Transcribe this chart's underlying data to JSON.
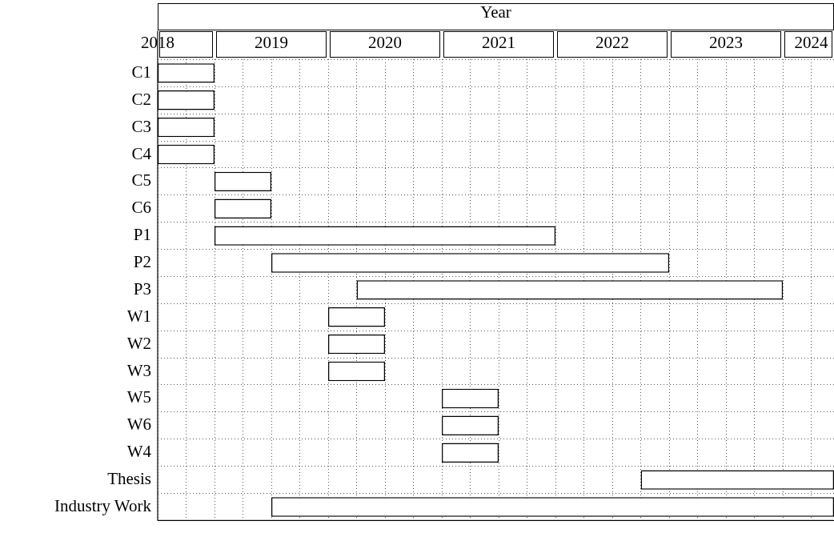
{
  "chart_data": {
    "type": "bar",
    "orientation": "horizontal",
    "xlabel": "Year",
    "categories": [
      "C1",
      "C2",
      "C3",
      "C4",
      "C5",
      "C6",
      "P1",
      "P2",
      "P3",
      "W1",
      "W2",
      "W3",
      "W5",
      "W6",
      "W4",
      "Thesis",
      "Industry Work"
    ],
    "base": [
      2018.5,
      2018.5,
      2018.5,
      2018.5,
      2019,
      2019,
      2019,
      2019.5,
      2020.25,
      2020,
      2020,
      2020,
      2021,
      2021,
      2021,
      2022.75,
      2019.5
    ],
    "values": [
      0.5,
      0.5,
      0.5,
      0.5,
      0.5,
      0.5,
      3,
      3.5,
      3.75,
      0.5,
      0.5,
      0.5,
      0.5,
      0.5,
      0.5,
      1.7,
      4.95
    ],
    "color": "#ffffff",
    "xlim": [
      2018.5,
      2024.45
    ],
    "xticks": [
      {
        "value": 2018.5,
        "label": "2018"
      },
      {
        "value": 2018.75,
        "label": null
      },
      {
        "value": 2019,
        "label": null
      },
      {
        "value": 2019.25,
        "label": null
      },
      {
        "value": 2019.5,
        "label": "2019"
      },
      {
        "value": 2019.75,
        "label": null
      },
      {
        "value": 2020,
        "label": null
      },
      {
        "value": 2020.25,
        "label": null
      },
      {
        "value": 2020.5,
        "label": "2020"
      },
      {
        "value": 2020.75,
        "label": null
      },
      {
        "value": 2021,
        "label": null
      },
      {
        "value": 2021.25,
        "label": null
      },
      {
        "value": 2021.5,
        "label": "2021"
      },
      {
        "value": 2021.75,
        "label": null
      },
      {
        "value": 2022,
        "label": null
      },
      {
        "value": 2022.25,
        "label": null
      },
      {
        "value": 2022.5,
        "label": "2022"
      },
      {
        "value": 2022.75,
        "label": null
      },
      {
        "value": 2023,
        "label": null
      },
      {
        "value": 2023.25,
        "label": null
      },
      {
        "value": 2023.5,
        "label": "2023"
      },
      {
        "value": 2023.75,
        "label": null
      },
      {
        "value": 2024,
        "label": null
      },
      {
        "value": 2024.25,
        "label": "2024"
      }
    ],
    "grid": true,
    "legend": false
  }
}
